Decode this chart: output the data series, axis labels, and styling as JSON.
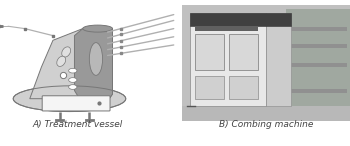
{
  "fig_width": 3.5,
  "fig_height": 1.46,
  "dpi": 100,
  "bg_color": "#ffffff",
  "label_a": "A) Treatment vessel",
  "label_b": "B) Combing machine",
  "label_fontsize": 6.5,
  "label_color": "#444444",
  "vessel_fill": "#d0d0d0",
  "vessel_edge": "#777777",
  "vessel_dark": "#999999",
  "tube_color": "#aaaaaa",
  "photo_outer": "#c8c8c8",
  "photo_machine_light": "#e0e0e0",
  "photo_machine_dark": "#555555",
  "photo_bg_dark": "#888888",
  "photo_window_dark": "#404040",
  "photo_window_light": "#c0c0c0"
}
